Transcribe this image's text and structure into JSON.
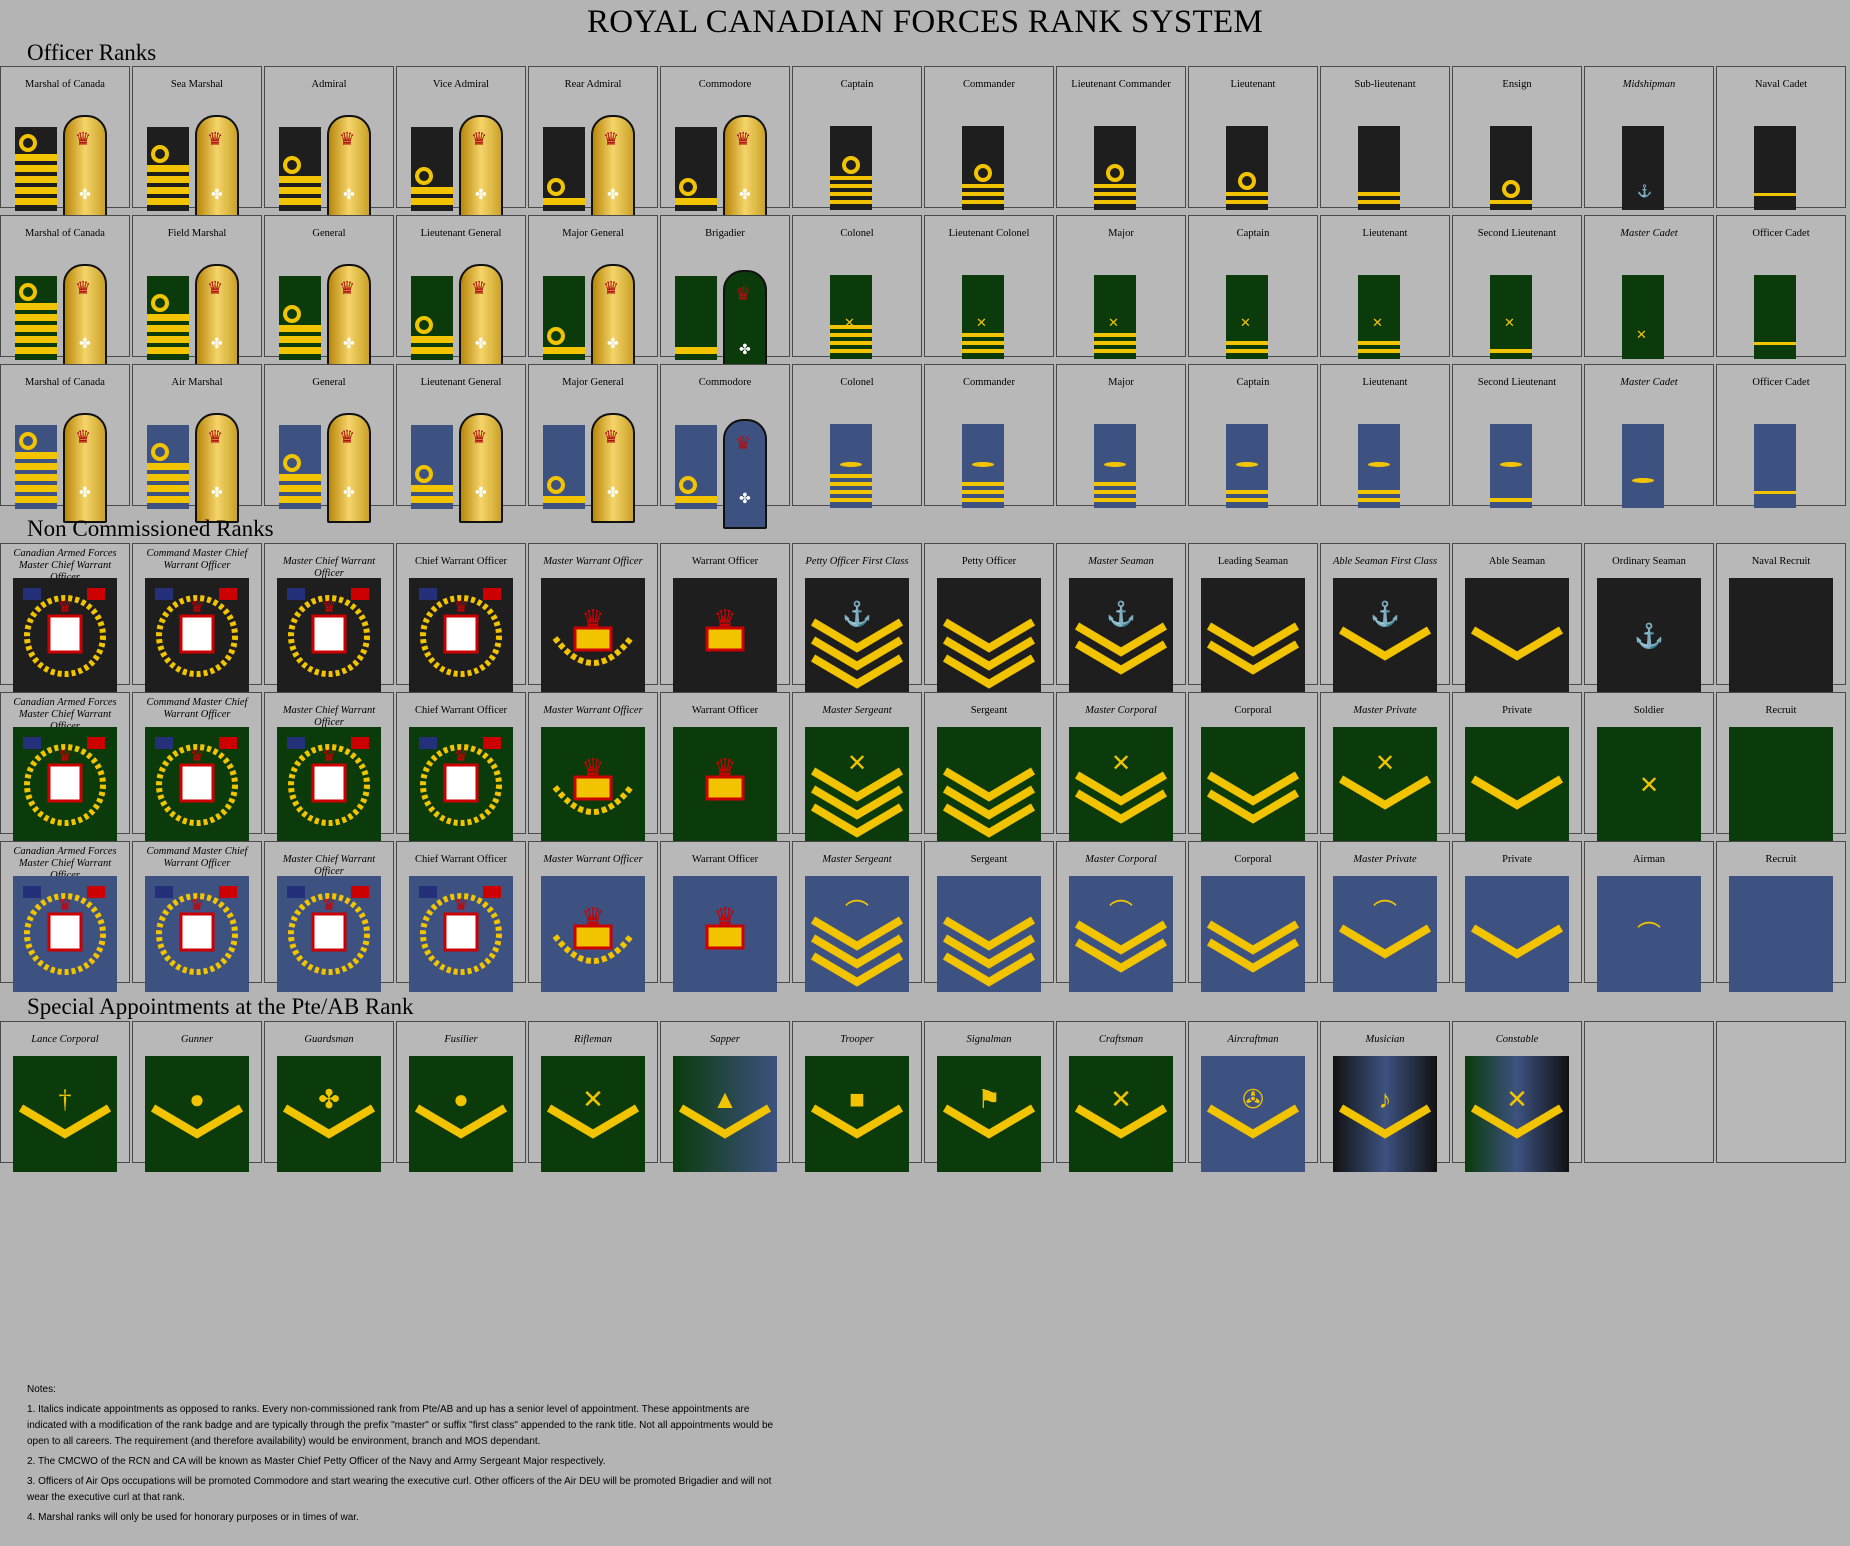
{
  "title": "ROYAL CANADIAN FORCES RANK SYSTEM",
  "sections": {
    "officer": "Officer Ranks",
    "ncm": "Non Commissioned Ranks",
    "special": "Special Appointments at the Pte/AB Rank"
  },
  "colors": {
    "background": "#b4b4b4",
    "navy": "#1e1e1e",
    "army": "#0b3b0b",
    "air": "#3d5280",
    "gold": "#f2c400"
  },
  "officer_rows": [
    {
      "service": "navy",
      "labels": [
        "Marshal of Canada",
        "Sea Marshal",
        "Admiral",
        "Vice Admiral",
        "Rear Admiral",
        "Commodore",
        "Captain",
        "Commander",
        "Lieutenant Commander",
        "Lieutenant",
        "Sub-lieutenant",
        "Ensign",
        "Midshipman",
        "Naval Cadet"
      ]
    },
    {
      "service": "army",
      "labels": [
        "Marshal of Canada",
        "Field Marshal",
        "General",
        "Lieutenant General",
        "Major General",
        "Brigadier",
        "Colonel",
        "Lieutenant Colonel",
        "Major",
        "Captain",
        "Lieutenant",
        "Second Lieutenant",
        "Master Cadet",
        "Officer Cadet"
      ]
    },
    {
      "service": "air",
      "labels": [
        "Marshal of Canada",
        "Air Marshal",
        "General",
        "Lieutenant General",
        "Major General",
        "Commodore",
        "Colonel",
        "Commander",
        "Major",
        "Captain",
        "Lieutenant",
        "Second Lieutenant",
        "Master Cadet",
        "Officer Cadet"
      ]
    }
  ],
  "ncm_rows": [
    {
      "service": "navy",
      "labels": [
        "Canadian Armed Forces Master Chief Warrant Officer",
        "Command Master Chief Warrant Officer",
        "Master Chief Warrant Officer",
        "Chief Warrant Officer",
        "Master Warrant Officer",
        "Warrant Officer",
        "Petty Officer First Class",
        "Petty Officer",
        "Master Seaman",
        "Leading Seaman",
        "Able Seaman First Class",
        "Able Seaman",
        "Ordinary Seaman",
        "Naval Recruit"
      ]
    },
    {
      "service": "army",
      "labels": [
        "Canadian Armed Forces Master Chief Warrant Officer",
        "Command Master Chief Warrant Officer",
        "Master Chief Warrant Officer",
        "Chief Warrant Officer",
        "Master Warrant Officer",
        "Warrant Officer",
        "Master Sergeant",
        "Sergeant",
        "Master Corporal",
        "Corporal",
        "Master Private",
        "Private",
        "Soldier",
        "Recruit"
      ]
    },
    {
      "service": "air",
      "labels": [
        "Canadian Armed Forces Master Chief Warrant Officer",
        "Command Master Chief Warrant Officer",
        "Master Chief Warrant Officer",
        "Chief Warrant Officer",
        "Master Warrant Officer",
        "Warrant Officer",
        "Master Sergeant",
        "Sergeant",
        "Master Corporal",
        "Corporal",
        "Master Private",
        "Private",
        "Airman",
        "Recruit"
      ]
    }
  ],
  "special_row": {
    "labels": [
      "Lance Corporal",
      "Gunner",
      "Guardsman",
      "Fusilier",
      "Rifleman",
      "Sapper",
      "Trooper",
      "Signalman",
      "Craftsman",
      "Aircraftman",
      "Musician",
      "Constable",
      "",
      ""
    ]
  },
  "notes": {
    "heading": "Notes:",
    "items": [
      "1. Italics indicate appointments as opposed to ranks. Every non-commissioned rank from Pte/AB and up has a senior level of appointment. These appointments are indicated with a modification of the rank badge and are typically through the prefix \"master\" or suffix \"first class\" appended to the rank title. Not all appointments would be open to all careers. The requirement (and therefore availability) would be environment, branch and MOS dependant.",
      "2. The CMCWO of the RCN and CA will be known as Master Chief Petty Officer of the Navy and Army Sergeant Major respectively.",
      "3. Officers of Air Ops occupations will be promoted Commodore and start wearing the executive curl. Other officers of the Air DEU will be promoted Brigadier and will not wear the executive curl at that rank.",
      "4. Marshal ranks will only be used for honorary purposes or in times of war."
    ]
  }
}
